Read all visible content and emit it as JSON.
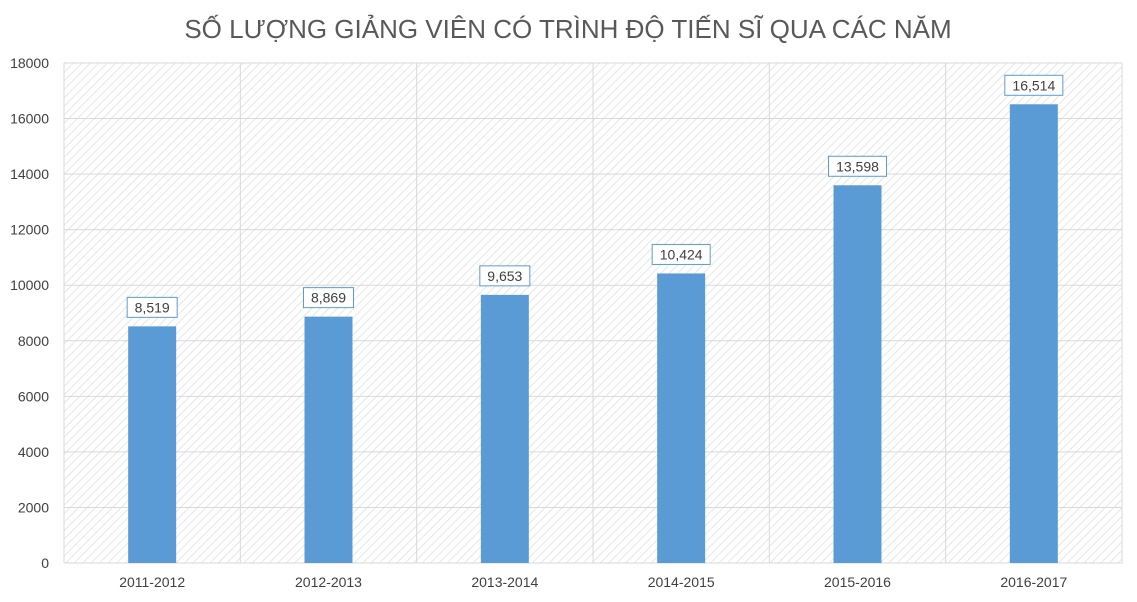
{
  "chart_data": {
    "type": "bar",
    "title": "SỐ LƯỢNG GIẢNG VIÊN CÓ TRÌNH ĐỘ TIẾN SĨ QUA CÁC NĂM",
    "xlabel": "",
    "ylabel": "",
    "categories": [
      "2011-2012",
      "2012-2013",
      "2013-2014",
      "2014-2015",
      "2015-2016",
      "2016-2017"
    ],
    "values": [
      8519,
      8869,
      9653,
      10424,
      13598,
      16514
    ],
    "data_labels": [
      "8,519",
      "8,869",
      "9,653",
      "10,424",
      "13,598",
      "16,514"
    ],
    "ylim": [
      0,
      18000
    ],
    "yticks": [
      0,
      2000,
      4000,
      6000,
      8000,
      10000,
      12000,
      14000,
      16000,
      18000
    ],
    "grid": true,
    "legend": "none",
    "colors": {
      "bar": "#5b9bd5",
      "grid": "#d9d9d9",
      "label_border": "#5b9bd5",
      "plot_hatch": "#e6e6e6"
    }
  }
}
